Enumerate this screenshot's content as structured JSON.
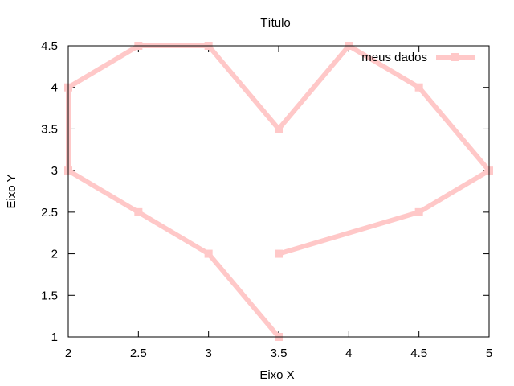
{
  "chart_data": {
    "type": "line",
    "title": "Título",
    "xlabel": "Eixo X",
    "ylabel": "Eixo Y",
    "xlim": [
      2,
      5
    ],
    "ylim": [
      1,
      4.5
    ],
    "xticks": [
      "2",
      "2.5",
      "3",
      "3.5",
      "4",
      "4.5",
      "5"
    ],
    "yticks": [
      "1",
      "1.5",
      "2",
      "2.5",
      "3",
      "3.5",
      "4",
      "4.5"
    ],
    "grid": false,
    "legend": "top-right",
    "series": [
      {
        "name": "meus dados",
        "color": "#ffc8c8",
        "marker": "square",
        "x": [
          3.5,
          3,
          2.5,
          2,
          2,
          2.5,
          3,
          3.5,
          4,
          4.5,
          5,
          4.5,
          3.5
        ],
        "y": [
          1,
          2,
          2.5,
          3,
          4,
          4.5,
          4.5,
          3.5,
          4.5,
          4,
          3,
          2.5,
          2
        ]
      }
    ]
  }
}
